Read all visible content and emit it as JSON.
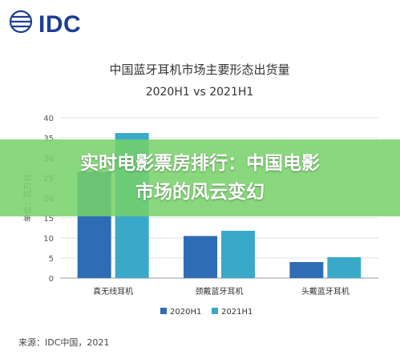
{
  "logo": {
    "text": "IDC",
    "icon": "idc-globe-logo"
  },
  "banner": {
    "text": "实时电影票房排行：中国电影\n市场的风云变幻"
  },
  "source": "来源：IDC中国，2021",
  "colors": {
    "series1": "#2e6db5",
    "series2": "#3aa9c9",
    "banner": "#76d268"
  },
  "chart_data": {
    "type": "bar",
    "title": "中国蓝牙耳机市场主要形态出货量",
    "subtitle": "2020H1 vs 2021H1",
    "ylabel": "单位：百万台",
    "xlabel": "",
    "categories": [
      "真无线耳机",
      "颈戴蓝牙耳机",
      "头戴蓝牙耳机"
    ],
    "series": [
      {
        "name": "2020H1",
        "values": [
          26.5,
          10.5,
          4.0
        ]
      },
      {
        "name": "2021H1",
        "values": [
          36.2,
          11.8,
          5.2
        ]
      }
    ],
    "ylim": [
      0,
      40
    ],
    "yticks": [
      "0",
      "5",
      "10",
      "15",
      "20",
      "25",
      "30",
      "35",
      "40"
    ],
    "grid": true,
    "legend": "bottom"
  }
}
